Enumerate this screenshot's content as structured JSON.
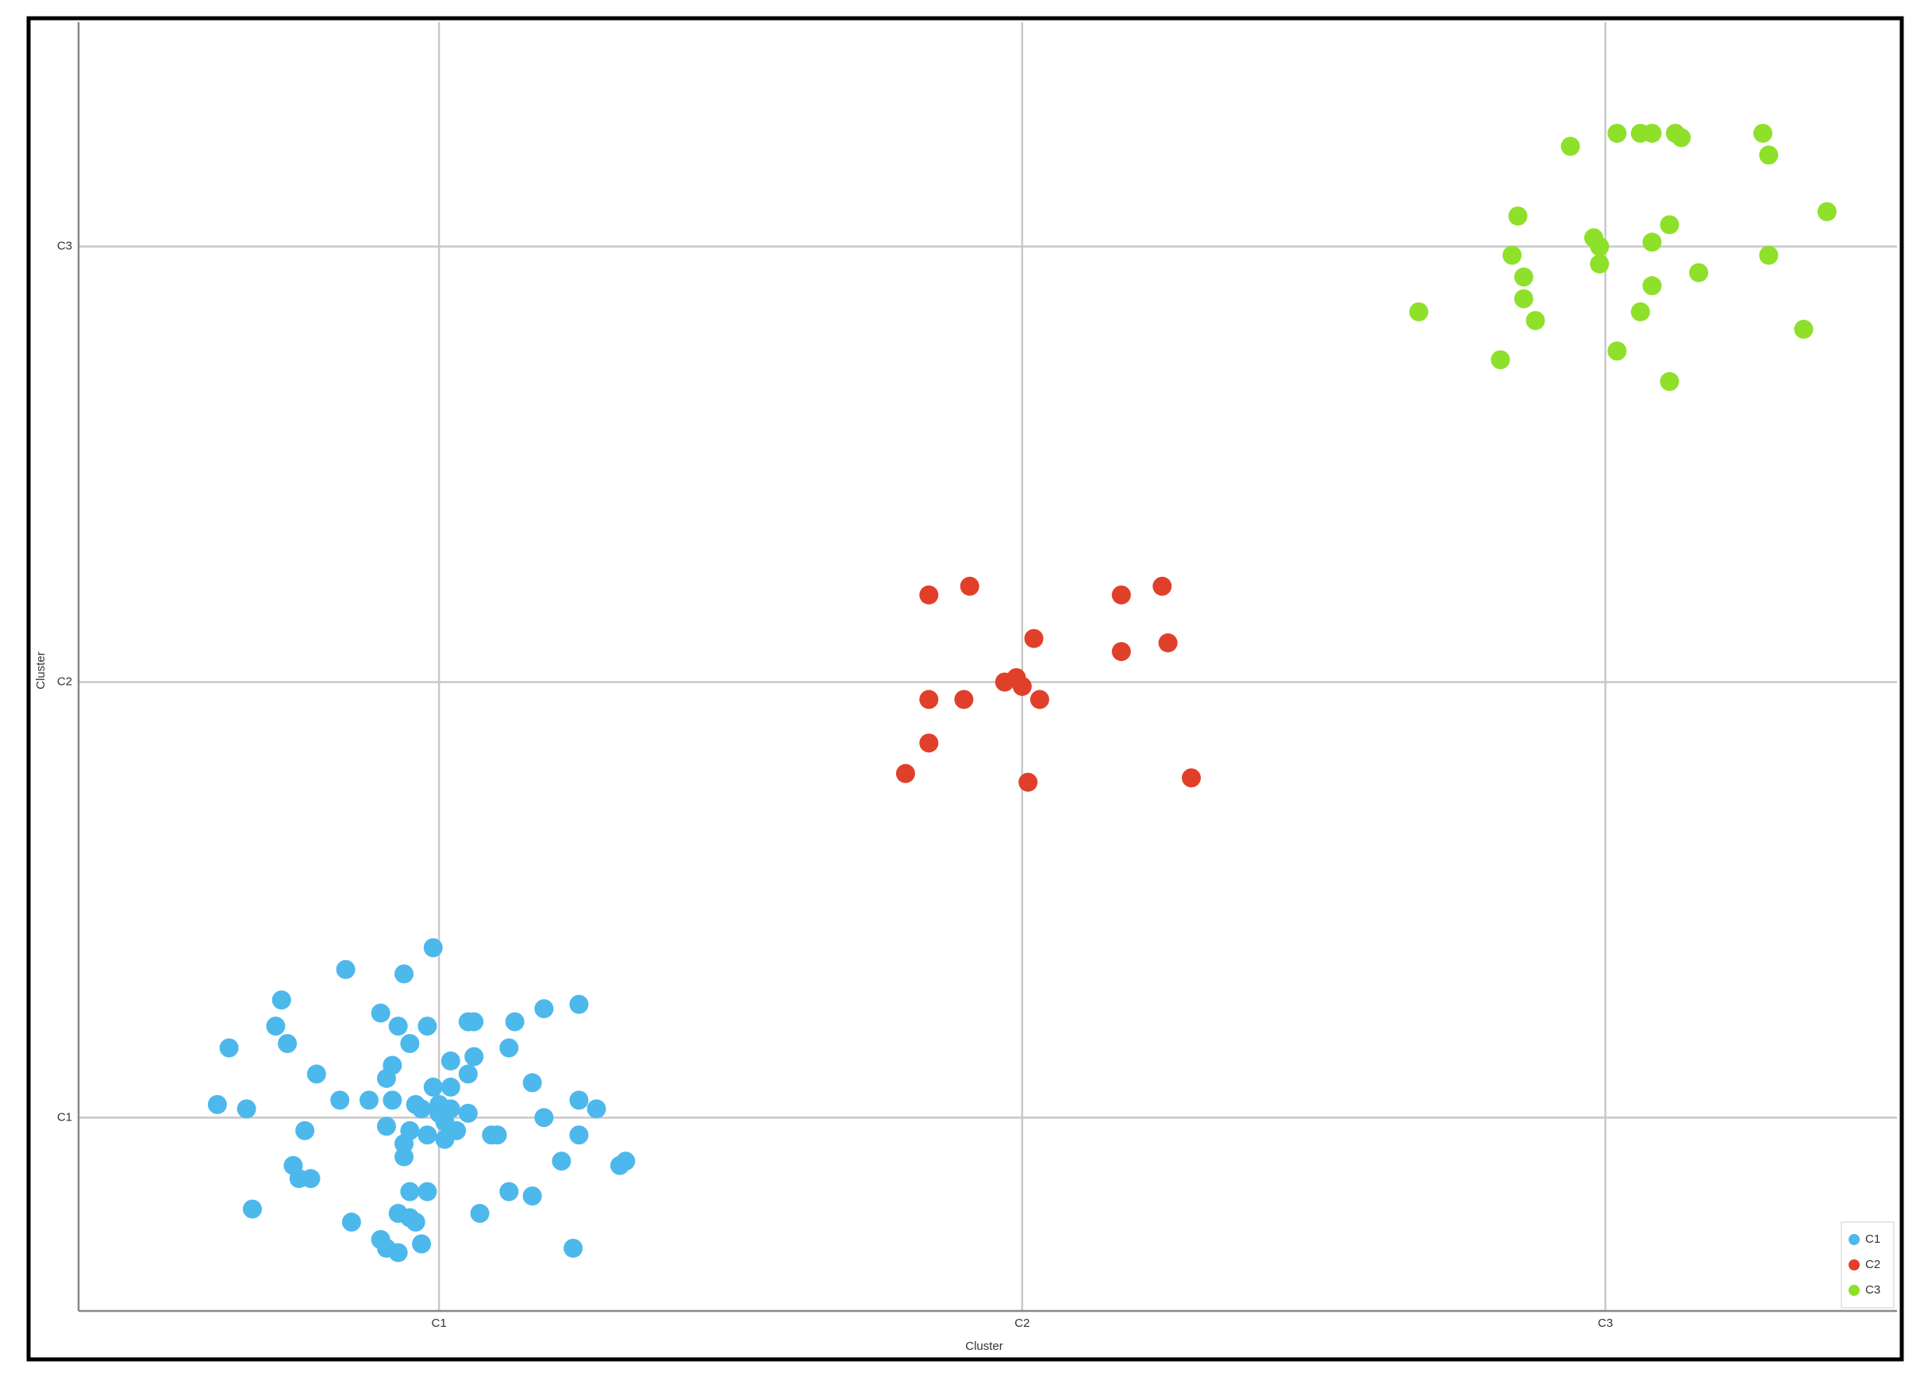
{
  "chart_data": {
    "type": "scatter",
    "x_label": "Cluster",
    "y_label": "Cluster",
    "xlim": [
      0.382,
      3.5
    ],
    "ylim": [
      0.556,
      3.515
    ],
    "xticks": [
      {
        "value": 1,
        "label": "C1"
      },
      {
        "value": 2,
        "label": "C2"
      },
      {
        "value": 3,
        "label": "C3"
      }
    ],
    "yticks": [
      {
        "value": 1,
        "label": "C1"
      },
      {
        "value": 2,
        "label": "C2"
      },
      {
        "value": 3,
        "label": "C3"
      }
    ],
    "grid": true,
    "legend": "lower right",
    "series": [
      {
        "name": "C1",
        "color": "#4db8ec",
        "x": [
          0.99,
          0.84,
          0.94,
          0.73,
          0.9,
          1.18,
          1.24,
          0.72,
          0.93,
          0.98,
          1.05,
          1.06,
          1.13,
          0.74,
          0.95,
          0.64,
          1.12,
          1.02,
          1.06,
          0.79,
          0.92,
          0.91,
          1.05,
          1.16,
          0.99,
          1.02,
          0.62,
          0.67,
          0.83,
          0.88,
          0.92,
          0.96,
          0.97,
          1.0,
          1.02,
          1.05,
          1.18,
          1.27,
          1.24,
          0.77,
          0.91,
          0.95,
          0.98,
          1.01,
          1.03,
          1.09,
          1.1,
          1.24,
          0.94,
          0.94,
          0.75,
          0.76,
          0.78,
          1.21,
          1.31,
          1.32,
          0.95,
          0.98,
          1.12,
          1.16,
          0.68,
          0.93,
          0.95,
          0.96,
          1.07,
          0.85,
          0.9,
          0.91,
          0.93,
          0.97,
          1.23,
          1.0,
          1.01
        ],
        "y": [
          1.39,
          1.34,
          1.33,
          1.27,
          1.24,
          1.25,
          1.26,
          1.21,
          1.21,
          1.21,
          1.22,
          1.22,
          1.22,
          1.17,
          1.17,
          1.16,
          1.16,
          1.13,
          1.14,
          1.1,
          1.12,
          1.09,
          1.1,
          1.08,
          1.07,
          1.07,
          1.03,
          1.02,
          1.04,
          1.04,
          1.04,
          1.03,
          1.02,
          1.03,
          1.02,
          1.01,
          1.0,
          1.02,
          1.04,
          0.97,
          0.98,
          0.97,
          0.96,
          0.95,
          0.97,
          0.96,
          0.96,
          0.96,
          0.94,
          0.91,
          0.89,
          0.86,
          0.86,
          0.9,
          0.89,
          0.9,
          0.83,
          0.83,
          0.83,
          0.82,
          0.79,
          0.78,
          0.77,
          0.76,
          0.78,
          0.76,
          0.72,
          0.7,
          0.69,
          0.71,
          0.7,
          1.01,
          0.99
        ]
      },
      {
        "name": "C2",
        "color": "#e0402a",
        "x": [
          1.84,
          1.91,
          2.17,
          2.24,
          2.02,
          2.17,
          2.25,
          1.97,
          1.99,
          2.0,
          1.84,
          1.9,
          2.03,
          1.84,
          1.8,
          2.01,
          2.29
        ],
        "y": [
          2.2,
          2.22,
          2.2,
          2.22,
          2.1,
          2.07,
          2.09,
          2.0,
          2.01,
          1.99,
          1.96,
          1.96,
          1.96,
          1.86,
          1.79,
          1.77,
          1.78
        ]
      },
      {
        "name": "C3",
        "color": "#8ee02a",
        "x": [
          2.94,
          3.02,
          3.06,
          3.08,
          3.12,
          3.13,
          3.27,
          3.28,
          2.85,
          3.38,
          3.11,
          2.98,
          2.99,
          3.08,
          2.84,
          3.28,
          2.99,
          2.86,
          3.16,
          3.08,
          2.86,
          2.68,
          3.06,
          2.88,
          3.34,
          2.82,
          3.02,
          3.11
        ],
        "y": [
          3.23,
          3.26,
          3.26,
          3.26,
          3.26,
          3.25,
          3.26,
          3.21,
          3.07,
          3.08,
          3.05,
          3.02,
          3.0,
          3.01,
          2.98,
          2.98,
          2.96,
          2.93,
          2.94,
          2.91,
          2.88,
          2.85,
          2.85,
          2.83,
          2.81,
          2.74,
          2.76,
          2.69
        ]
      }
    ]
  }
}
